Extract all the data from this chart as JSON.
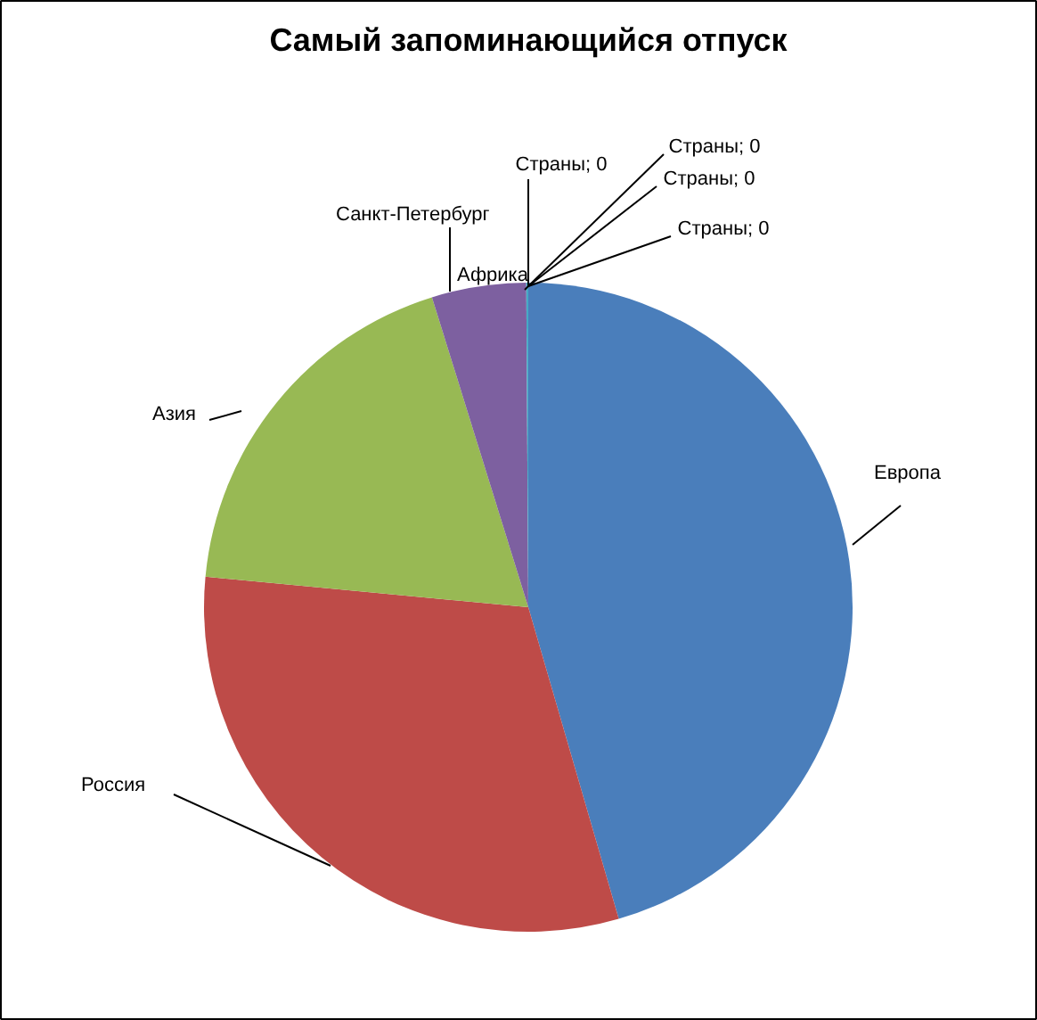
{
  "chart_data": {
    "type": "pie",
    "title": "Самый запоминающийся отпуск",
    "categories": [
      "Европа",
      "Россия",
      "Азия",
      "Санкт-Петербург",
      "Африка",
      "Страны",
      "Страны",
      "Страны",
      "Страны"
    ],
    "values": [
      45.5,
      31,
      18.7,
      4.7,
      0.1,
      0,
      0,
      0,
      0
    ],
    "colors": [
      "#4a7ebb",
      "#be4b48",
      "#98b954",
      "#7d60a0",
      "#46aac5",
      "#f59d56",
      "#2c4d75",
      "#772c2a",
      "#5f7530"
    ],
    "value_labels": [
      null,
      null,
      null,
      null,
      null,
      "; 0",
      "; 0",
      "; 0",
      "; 0"
    ]
  }
}
